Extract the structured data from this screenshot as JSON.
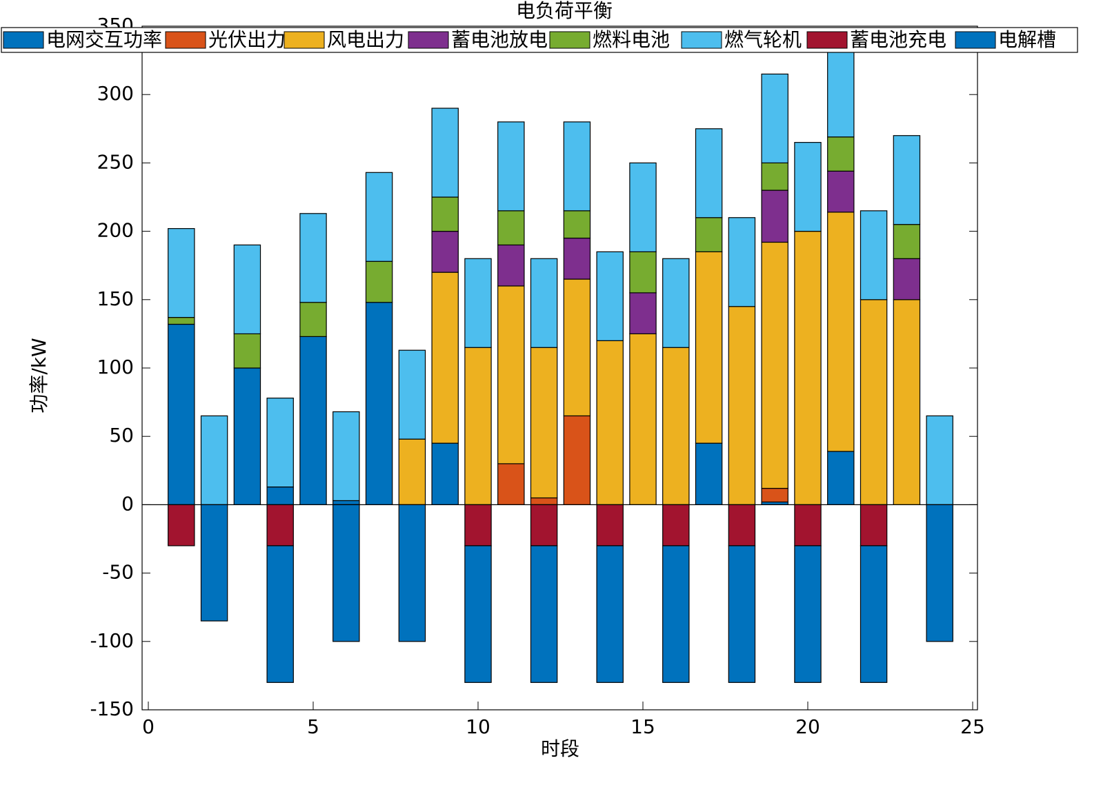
{
  "chart_data": {
    "type": "stacked_bar",
    "title": "电负荷平衡",
    "xlabel": "时段",
    "ylabel": "功率/kW",
    "x": [
      1,
      2,
      3,
      4,
      5,
      6,
      7,
      8,
      9,
      10,
      11,
      12,
      13,
      14,
      15,
      16,
      17,
      18,
      19,
      20,
      21,
      22,
      23,
      24
    ],
    "xlim": [
      0,
      25
    ],
    "xticks": [
      0,
      5,
      10,
      15,
      20,
      25
    ],
    "ylim": [
      -150,
      350
    ],
    "yticks": [
      -150,
      -100,
      -50,
      0,
      50,
      100,
      150,
      200,
      250,
      300,
      350
    ],
    "legend": "top",
    "series": [
      {
        "name": "电网交互功率",
        "color": "#0072BD",
        "values": [
          132,
          0,
          100,
          13,
          123,
          3,
          148,
          0,
          45,
          0,
          0,
          0,
          0,
          0,
          0,
          0,
          45,
          0,
          2,
          0,
          39,
          0,
          0,
          0
        ]
      },
      {
        "name": "光伏出力",
        "color": "#D95319",
        "values": [
          0,
          0,
          0,
          0,
          0,
          0,
          0,
          0,
          0,
          0,
          30,
          5,
          65,
          0,
          0,
          0,
          0,
          0,
          10,
          0,
          0,
          0,
          0,
          0
        ]
      },
      {
        "name": "风电出力",
        "color": "#EDB120",
        "values": [
          0,
          0,
          0,
          0,
          0,
          0,
          0,
          48,
          125,
          115,
          130,
          110,
          100,
          120,
          125,
          115,
          140,
          145,
          180,
          200,
          175,
          150,
          150,
          0
        ]
      },
      {
        "name": "蓄电池放电",
        "color": "#7E2F8E",
        "values": [
          0,
          0,
          0,
          0,
          0,
          0,
          0,
          0,
          30,
          0,
          30,
          0,
          30,
          0,
          30,
          0,
          0,
          0,
          38,
          0,
          30,
          0,
          30,
          0
        ]
      },
      {
        "name": "燃料电池",
        "color": "#77AC30",
        "values": [
          5,
          0,
          25,
          0,
          25,
          0,
          30,
          0,
          25,
          0,
          25,
          0,
          20,
          0,
          30,
          0,
          25,
          0,
          20,
          0,
          25,
          0,
          25,
          0
        ]
      },
      {
        "name": "燃气轮机",
        "color": "#4DBEEE",
        "values": [
          65,
          65,
          65,
          65,
          65,
          65,
          65,
          65,
          65,
          65,
          65,
          65,
          65,
          65,
          65,
          65,
          65,
          65,
          65,
          65,
          65,
          65,
          65,
          65
        ]
      },
      {
        "name": "蓄电池充电",
        "color": "#A2142F",
        "values": [
          -30,
          0,
          0,
          -30,
          0,
          0,
          0,
          0,
          0,
          -30,
          0,
          -30,
          0,
          -30,
          0,
          -30,
          0,
          -30,
          0,
          -30,
          0,
          -30,
          0,
          0
        ]
      },
      {
        "name": "电解槽",
        "color": "#0072BD",
        "values": [
          0,
          -85,
          0,
          -100,
          0,
          -100,
          0,
          -100,
          0,
          -100,
          0,
          -100,
          0,
          -100,
          0,
          -100,
          0,
          -100,
          0,
          -100,
          0,
          -100,
          0,
          -100
        ]
      }
    ]
  }
}
